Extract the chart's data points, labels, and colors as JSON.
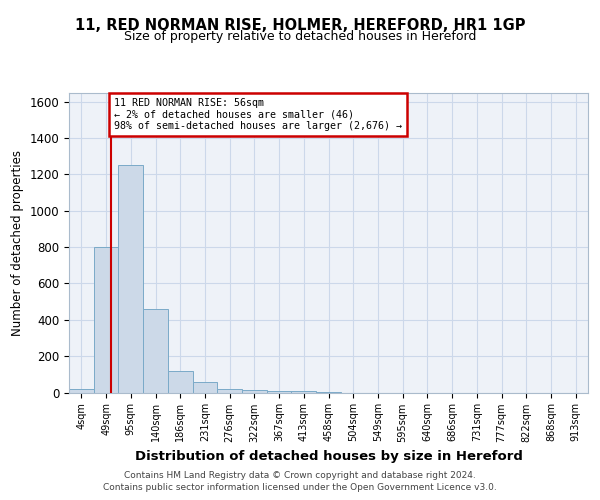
{
  "title1": "11, RED NORMAN RISE, HOLMER, HEREFORD, HR1 1GP",
  "title2": "Size of property relative to detached houses in Hereford",
  "xlabel": "Distribution of detached houses by size in Hereford",
  "ylabel": "Number of detached properties",
  "bin_labels": [
    "4sqm",
    "49sqm",
    "95sqm",
    "140sqm",
    "186sqm",
    "231sqm",
    "276sqm",
    "322sqm",
    "367sqm",
    "413sqm",
    "458sqm",
    "504sqm",
    "549sqm",
    "595sqm",
    "640sqm",
    "686sqm",
    "731sqm",
    "777sqm",
    "822sqm",
    "868sqm",
    "913sqm"
  ],
  "bar_heights": [
    20,
    800,
    1250,
    460,
    120,
    60,
    20,
    15,
    10,
    10,
    5,
    0,
    0,
    0,
    0,
    0,
    0,
    0,
    0,
    0,
    0
  ],
  "bar_color": "#ccd9e8",
  "bar_edgecolor": "#7aaac8",
  "ylim": [
    0,
    1650
  ],
  "yticks": [
    0,
    200,
    400,
    600,
    800,
    1000,
    1200,
    1400,
    1600
  ],
  "red_line_x": 1.18,
  "annotation_text": "11 RED NORMAN RISE: 56sqm\n← 2% of detached houses are smaller (46)\n98% of semi-detached houses are larger (2,676) →",
  "annotation_box_color": "#ffffff",
  "annotation_box_edgecolor": "#cc0000",
  "footer1": "Contains HM Land Registry data © Crown copyright and database right 2024.",
  "footer2": "Contains public sector information licensed under the Open Government Licence v3.0.",
  "background_color": "#ffffff",
  "grid_color": "#ccd8ea"
}
